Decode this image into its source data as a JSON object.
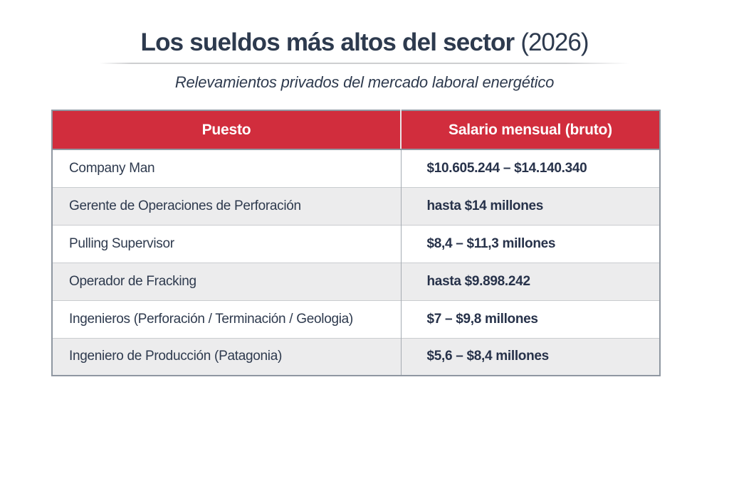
{
  "header": {
    "title_main": "Los sueldos más altos del sector",
    "title_year": "(2026)",
    "subtitle": "Relevamientos privados del mercado laboral energético"
  },
  "colors": {
    "header_red": "#d12d3d",
    "header_text": "#ffffff",
    "text_navy": "#2e3a4e",
    "salary_text_navy": "#27324a",
    "row_stripe_gray": "#ececed",
    "row_white": "#ffffff",
    "table_border_gray": "#8f97a1",
    "divider_gray": "#cdced0"
  },
  "chart_data": {
    "type": "table",
    "title": "Los sueldos más altos del sector (2026)",
    "subtitle": "Relevamientos privados del mercado laboral energético",
    "columns": [
      "Puesto",
      "Salario mensual (bruto)"
    ],
    "rows": [
      [
        "Company Man",
        "$10.605.244 – $14.140.340"
      ],
      [
        "Gerente de Operaciones de Perforación",
        "hasta $14 millones"
      ],
      [
        "Pulling Supervisor",
        "$8,4 – $11,3 millones"
      ],
      [
        "Operador de Fracking",
        "hasta $9.898.242"
      ],
      [
        "Ingenieros (Perforación / Terminación / Geologia)",
        "$7 – $9,8 millones"
      ],
      [
        "Ingeniero de Producción (Patagonia)",
        "$5,6 – $8,4 millones"
      ]
    ],
    "layout": {
      "header_background": "#d12d3d",
      "header_text_color": "#ffffff",
      "row_striping": "alternating white and light gray, starting white",
      "column_alignment": [
        "left",
        "left"
      ],
      "salary_column_bold": true,
      "grid": "outer border, column divider, horizontal row separators"
    }
  }
}
